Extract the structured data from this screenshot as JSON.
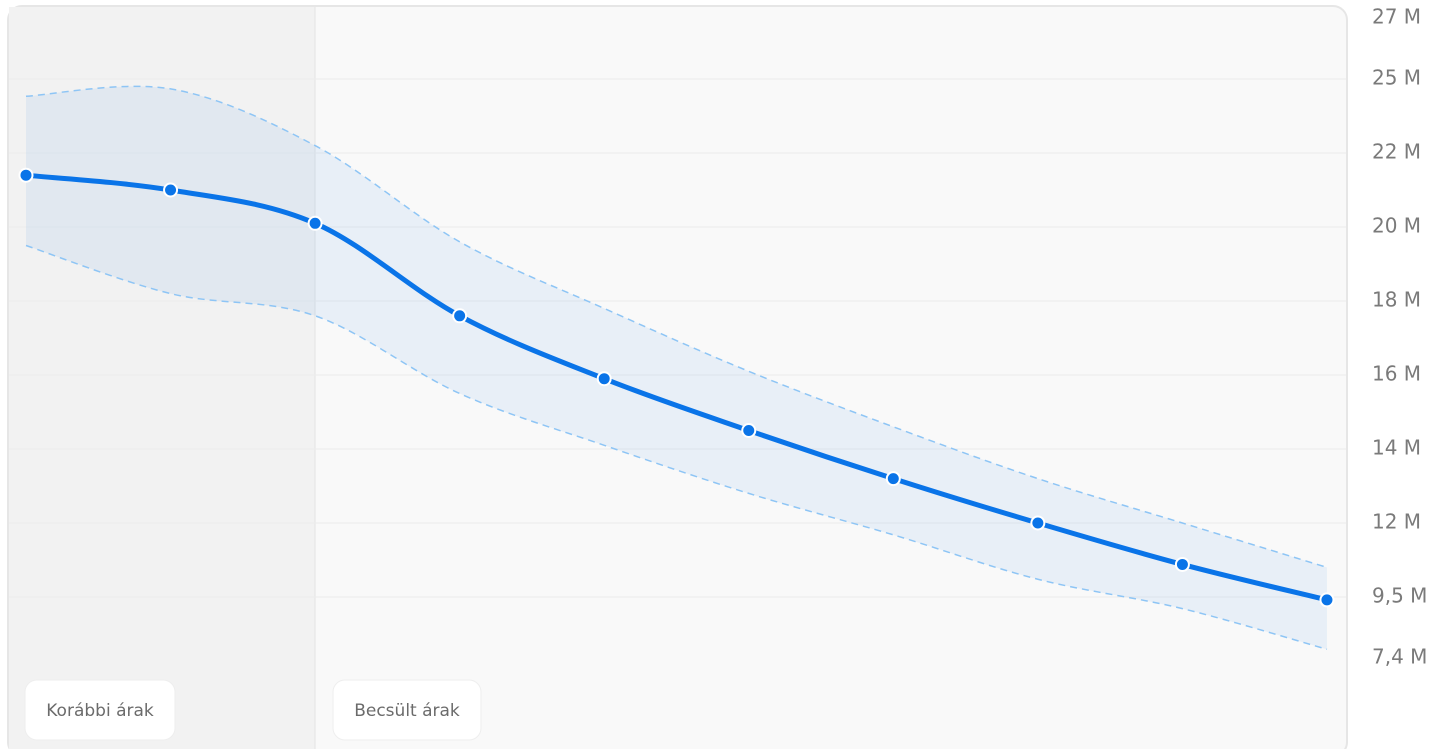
{
  "chart_data": {
    "type": "line",
    "values": [
      21.4,
      21.0,
      20.1,
      17.6,
      15.9,
      14.5,
      13.2,
      12.0,
      10.6,
      9.4
    ],
    "color": "#0a74e8",
    "band": {
      "upper": [
        24.3,
        24.6,
        22.3,
        19.6,
        17.8,
        16.1,
        14.6,
        13.2,
        12.0,
        10.5
      ],
      "lower": [
        19.5,
        18.2,
        17.6,
        15.5,
        14.1,
        12.8,
        11.6,
        10.1,
        9.1,
        7.7
      ],
      "color": "#8ec5f5"
    },
    "yticks": [
      27,
      25,
      22,
      20,
      18,
      16,
      14,
      12,
      {
        "value": 9.5,
        "label": "9,5 M"
      },
      {
        "value": 7.4,
        "label": "7,4 M"
      }
    ],
    "ytick_labels": [
      "27 M",
      "25 M",
      "22 M",
      "20 M",
      "18 M",
      "16 M",
      "14 M",
      "12 M"
    ],
    "grid": true,
    "annotations": [
      "Korábbi árak",
      "Becsült árak"
    ]
  }
}
